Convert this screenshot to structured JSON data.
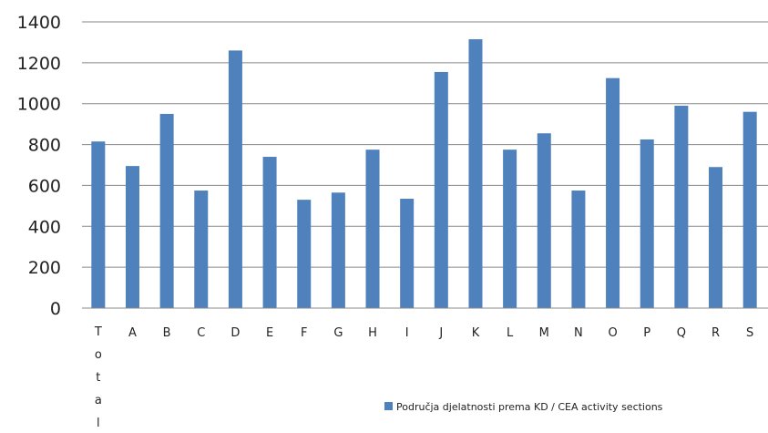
{
  "chart_data": {
    "type": "bar",
    "categories": [
      "Total",
      "A",
      "B",
      "C",
      "D",
      "E",
      "F",
      "G",
      "H",
      "I",
      "J",
      "K",
      "L",
      "M",
      "N",
      "O",
      "P",
      "Q",
      "R",
      "S"
    ],
    "series": [
      {
        "name": "Područja djelatnosti prema KD / CEA activity sections",
        "values": [
          815,
          695,
          950,
          575,
          1260,
          740,
          530,
          565,
          775,
          535,
          1155,
          1315,
          775,
          855,
          575,
          1125,
          825,
          990,
          690,
          960
        ],
        "color": "#4F81BD"
      }
    ],
    "yticks": [
      0,
      200,
      400,
      600,
      800,
      1000,
      1200,
      1400
    ],
    "ylim": [
      0,
      1400
    ],
    "grid": true,
    "legend_position": "bottom-right"
  }
}
